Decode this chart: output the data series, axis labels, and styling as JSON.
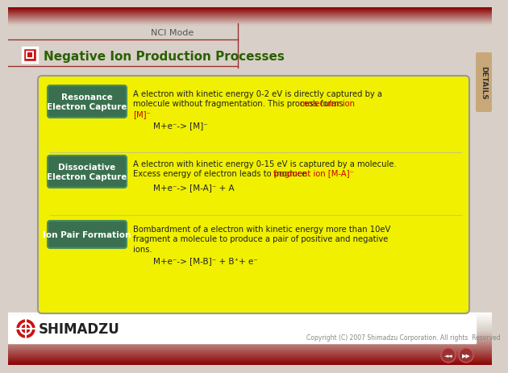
{
  "bg_color": "#d8d0c8",
  "top_bar_color": "#8b0000",
  "title_text": "Negative Ion Production Processes",
  "title_color": "#2a6000",
  "tab_text": "NCI Mode",
  "tab_color": "#555555",
  "red_square_outer": "#cc1111",
  "red_square_inner": "#ffffff",
  "red_square_fill": "#cc1111",
  "card_bg": "#f0f000",
  "card_border": "#aaaaaa",
  "label_bg": "#3a7050",
  "label_text_color": "#ffffff",
  "label_border": "#4a9060",
  "body_text_color": "#222222",
  "highlight_color": "#cc0000",
  "details_tab_color": "#c8a878",
  "details_text_color": "#333333",
  "footer_bg": "#ffffff",
  "footer_bar_color": "#8b0000",
  "shimadzu_text_color": "#222222",
  "copyright_color": "#555555",
  "items": [
    {
      "label": "Resonance\nElectron Capture",
      "body_line1": "A electron with kinetic energy 0-2 eV is directly captured by a",
      "body_line2": "molecule without fragmentation. This process forms ",
      "body_line2_highlight": "molecular ion",
      "body_line3": "[M]",
      "body_line3_sup": "⁻",
      "formula": "M+e⁻-> [M]⁻"
    },
    {
      "label": "Dissociative\nElectron Capture",
      "body_line1": "A electron with kinetic energy 0-15 eV is captured by a molecule.",
      "body_line2": "Excess energy of electron leads to produce ",
      "body_line2_highlight": "fragment ion [M-A]⁻",
      "body_line3": "",
      "body_line3_sup": "",
      "formula": "M+e⁻-> [M-A]⁻ + A"
    },
    {
      "label": "Ion Pair Formation",
      "body_line1": "Bombardment of a electron with kinetic energy more than 10eV",
      "body_line2": "fragment a molecule to produce a pair of positive and negative",
      "body_line2_highlight": "",
      "body_line3": "ions.",
      "body_line3_sup": "",
      "formula": "M+e⁻-> [M-B]⁻ + B⁺+ e⁻"
    }
  ],
  "copyright": "Copyright (C) 2007 Shimadzu Corporation. All rights  Reserved"
}
